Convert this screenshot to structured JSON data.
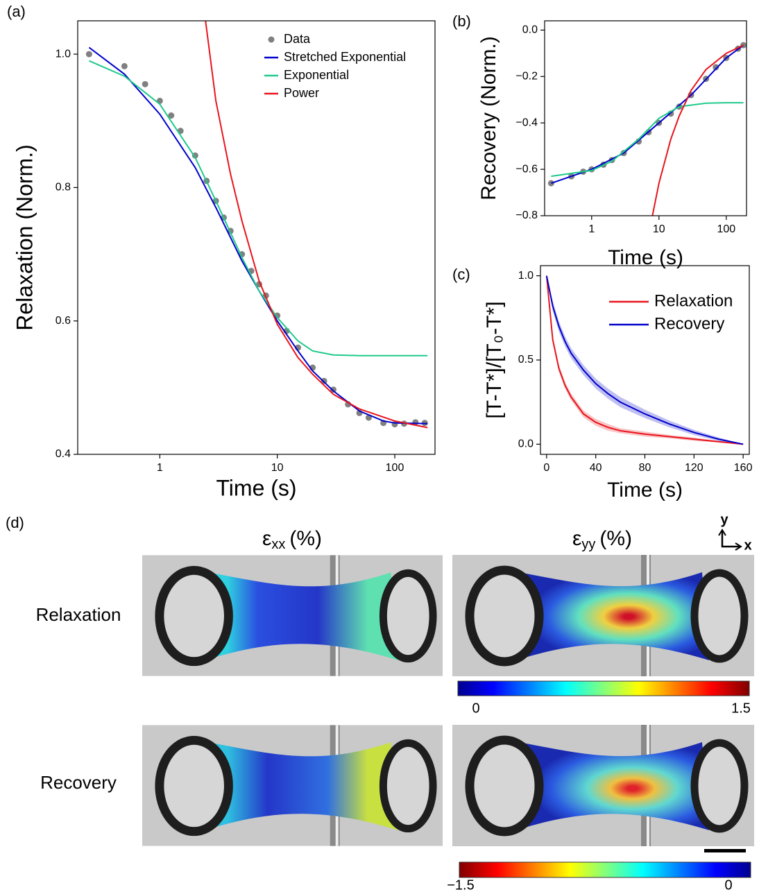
{
  "chart_data": [
    {
      "type": "line",
      "panel_label": "(a)",
      "xlabel": "Time (s)",
      "ylabel": "Relaxation (Norm.)",
      "xscale": "log",
      "xlim": [
        0.2,
        220
      ],
      "ylim": [
        0.4,
        1.05
      ],
      "xticks": [
        1,
        10,
        100
      ],
      "yticks": [
        0.4,
        0.6,
        0.8,
        {
          "value": 1,
          "label": "1.0"
        }
      ],
      "legend": "top-right",
      "series": [
        {
          "name": "Data",
          "color": "#808080",
          "marker": "circle",
          "x": [
            0.25,
            0.5,
            0.75,
            1,
            1.25,
            1.5,
            2,
            2.5,
            3,
            3.5,
            4,
            5,
            6,
            7,
            8,
            10,
            12,
            15,
            20,
            25,
            30,
            40,
            50,
            60,
            80,
            100,
            120,
            150,
            180
          ],
          "values": [
            1.0,
            0.982,
            0.955,
            0.93,
            0.908,
            0.885,
            0.848,
            0.81,
            0.78,
            0.755,
            0.735,
            0.7,
            0.675,
            0.655,
            0.638,
            0.608,
            0.585,
            0.56,
            0.53,
            0.51,
            0.497,
            0.475,
            0.462,
            0.455,
            0.447,
            0.445,
            0.446,
            0.448,
            0.447
          ]
        },
        {
          "name": "Stretched Exponential",
          "color": "#0000cc",
          "x": [
            0.25,
            0.5,
            1,
            2,
            3,
            5,
            7,
            10,
            15,
            20,
            30,
            50,
            80,
            100,
            190
          ],
          "values": [
            1.01,
            0.97,
            0.91,
            0.83,
            0.77,
            0.69,
            0.645,
            0.6,
            0.555,
            0.525,
            0.495,
            0.465,
            0.45,
            0.447,
            0.446
          ]
        },
        {
          "name": "Exponential",
          "color": "#1ec98a",
          "x": [
            0.25,
            0.5,
            1,
            2,
            3,
            5,
            7,
            10,
            15,
            20,
            30,
            50,
            100,
            190
          ],
          "values": [
            0.99,
            0.967,
            0.925,
            0.845,
            0.78,
            0.695,
            0.645,
            0.605,
            0.57,
            0.555,
            0.549,
            0.548,
            0.548,
            0.548
          ]
        },
        {
          "name": "Power",
          "color": "#e8141c",
          "x": [
            2.45,
            3,
            4,
            5,
            7,
            10,
            15,
            20,
            30,
            50,
            100,
            190
          ],
          "values": [
            1.05,
            0.93,
            0.82,
            0.75,
            0.66,
            0.595,
            0.545,
            0.52,
            0.49,
            0.468,
            0.45,
            0.44
          ]
        }
      ]
    },
    {
      "type": "line",
      "panel_label": "(b)",
      "xlabel": "Time (s)",
      "ylabel": "Recovery (Norm.)",
      "xscale": "log",
      "xlim": [
        0.2,
        200
      ],
      "ylim": [
        -0.8,
        0.04
      ],
      "xticks": [
        1,
        10,
        100
      ],
      "yticks": [
        {
          "value": -0.8,
          "label": "−0.8"
        },
        {
          "value": -0.6,
          "label": "−0.6"
        },
        {
          "value": -0.4,
          "label": "−0.4"
        },
        {
          "value": -0.2,
          "label": "−0.2"
        },
        {
          "value": 0,
          "label": "0.0"
        }
      ],
      "series": [
        {
          "color": "#808080",
          "marker": "circle",
          "x": [
            0.25,
            0.5,
            0.75,
            1,
            1.5,
            2,
            3,
            5,
            7,
            10,
            15,
            20,
            30,
            50,
            70,
            100,
            150,
            180
          ],
          "values": [
            -0.66,
            -0.63,
            -0.61,
            -0.6,
            -0.58,
            -0.56,
            -0.53,
            -0.48,
            -0.44,
            -0.4,
            -0.36,
            -0.33,
            -0.28,
            -0.21,
            -0.16,
            -0.12,
            -0.08,
            -0.065
          ]
        },
        {
          "color": "#0000cc",
          "x": [
            0.25,
            1,
            3,
            10,
            30,
            100,
            180
          ],
          "values": [
            -0.66,
            -0.6,
            -0.53,
            -0.4,
            -0.28,
            -0.12,
            -0.065
          ]
        },
        {
          "color": "#1ec98a",
          "x": [
            0.25,
            1,
            2,
            5,
            10,
            20,
            50,
            100,
            180
          ],
          "values": [
            -0.63,
            -0.605,
            -0.565,
            -0.47,
            -0.38,
            -0.33,
            -0.315,
            -0.313,
            -0.313
          ]
        },
        {
          "color": "#e8141c",
          "x": [
            8,
            10,
            15,
            20,
            30,
            50,
            100,
            180
          ],
          "values": [
            -0.8,
            -0.66,
            -0.47,
            -0.37,
            -0.26,
            -0.17,
            -0.1,
            -0.065
          ]
        }
      ]
    },
    {
      "type": "line",
      "panel_label": "(c)",
      "xlabel": "Time (s)",
      "ylabel": "[T-T*]/[T₀-T*]",
      "xlim": [
        -5,
        165
      ],
      "ylim": [
        -0.06,
        1.06
      ],
      "xticks": [
        0,
        40,
        80,
        120,
        160
      ],
      "yticks": [
        {
          "value": 0,
          "label": "0.0"
        },
        0.5,
        {
          "value": 1,
          "label": "1.0"
        }
      ],
      "legend": "top-right",
      "series": [
        {
          "name": "Relaxation",
          "color": "#e8141c",
          "x": [
            0,
            5,
            10,
            15,
            20,
            30,
            40,
            50,
            60,
            80,
            100,
            120,
            140,
            160
          ],
          "values": [
            1.0,
            0.62,
            0.45,
            0.35,
            0.28,
            0.18,
            0.13,
            0.1,
            0.08,
            0.06,
            0.045,
            0.03,
            0.015,
            0.0
          ],
          "errors": [
            0.0,
            0.02,
            0.02,
            0.02,
            0.02,
            0.02,
            0.02,
            0.02,
            0.015,
            0.015,
            0.01,
            0.01,
            0.005,
            0.0
          ]
        },
        {
          "name": "Recovery",
          "color": "#0000cc",
          "x": [
            0,
            5,
            10,
            15,
            20,
            30,
            40,
            50,
            60,
            80,
            100,
            120,
            140,
            160
          ],
          "values": [
            1.0,
            0.82,
            0.7,
            0.61,
            0.54,
            0.44,
            0.36,
            0.3,
            0.25,
            0.18,
            0.12,
            0.07,
            0.03,
            0.0
          ],
          "errors": [
            0.0,
            0.03,
            0.03,
            0.03,
            0.03,
            0.03,
            0.03,
            0.03,
            0.03,
            0.025,
            0.02,
            0.015,
            0.01,
            0.0
          ]
        }
      ]
    }
  ],
  "panel_d": {
    "label": "(d)",
    "columns": [
      {
        "symbol": "ε",
        "sub": "xx",
        "unit": "(%)"
      },
      {
        "symbol": "ε",
        "sub": "yy",
        "unit": "(%)"
      }
    ],
    "rows": [
      "Relaxation",
      "Recovery"
    ],
    "axes": {
      "y": "y",
      "x": "x"
    },
    "colorbars": [
      {
        "min_label": "0",
        "max_label": "1.5"
      },
      {
        "min_label": "−1.5",
        "max_label": "0"
      }
    ]
  }
}
